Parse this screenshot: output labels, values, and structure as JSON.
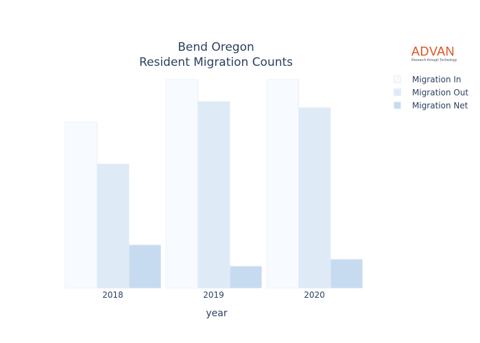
{
  "chart_data": {
    "type": "bar",
    "title_line1": "Bend Oregon",
    "title_line2": "Resident Migration Counts",
    "xlabel": "year",
    "ylabel": "",
    "categories": [
      "2018",
      "2019",
      "2020"
    ],
    "series": [
      {
        "name": "Migration In",
        "values": [
          242,
          304,
          304
        ],
        "color": "#f7fbff"
      },
      {
        "name": "Migration Out",
        "values": [
          181,
          272,
          263
        ],
        "color": "#deebf7"
      },
      {
        "name": "Migration Net",
        "values": [
          63,
          32,
          42
        ],
        "color": "#c6dbef"
      }
    ],
    "ylim": [
      0,
      320
    ],
    "grid": false,
    "legend_position": "right"
  },
  "logo": {
    "name": "ADVAN",
    "tagline": "Research through Technology"
  }
}
